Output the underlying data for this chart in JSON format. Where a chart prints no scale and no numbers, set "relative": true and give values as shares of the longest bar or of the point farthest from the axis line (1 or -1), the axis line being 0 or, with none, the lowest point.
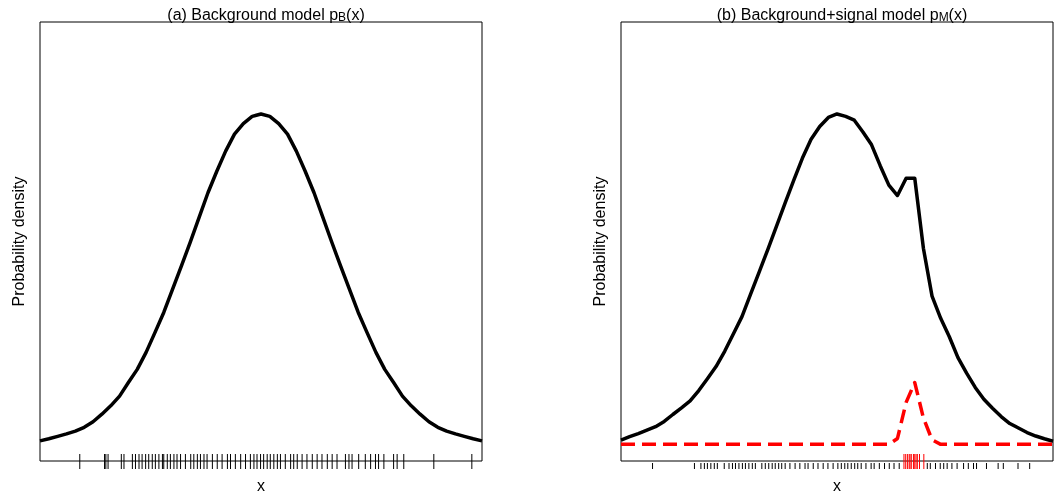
{
  "chart_data": [
    {
      "type": "line",
      "title": "(a) Background model p$_{B}$(x)",
      "xlabel": "x",
      "ylabel": "Probability density",
      "relative": true,
      "tick_labels": false,
      "grid": false,
      "categories": [
        null,
        null,
        null,
        null,
        null,
        null,
        null,
        null,
        null,
        null,
        null,
        null,
        null,
        null,
        null,
        null,
        null,
        null,
        null,
        null,
        null,
        null,
        null,
        null,
        null,
        null,
        null,
        null,
        null,
        null,
        null,
        null,
        null,
        null,
        null,
        null,
        null,
        null,
        null,
        null,
        null,
        null,
        null,
        null,
        null,
        null,
        null,
        null,
        null,
        null,
        null
      ],
      "series": [
        {
          "color": "#000000",
          "line_style": "solid",
          "values": [
            0.058,
            0.064,
            0.071,
            0.078,
            0.086,
            0.097,
            0.113,
            0.135,
            0.159,
            0.187,
            0.226,
            0.264,
            0.313,
            0.37,
            0.428,
            0.495,
            0.562,
            0.631,
            0.702,
            0.773,
            0.835,
            0.893,
            0.942,
            0.972,
            0.993,
            1.0,
            0.993,
            0.972,
            0.942,
            0.893,
            0.835,
            0.773,
            0.702,
            0.631,
            0.562,
            0.495,
            0.428,
            0.37,
            0.313,
            0.264,
            0.226,
            0.187,
            0.159,
            0.135,
            0.113,
            0.097,
            0.086,
            0.078,
            0.071,
            0.064,
            0.058
          ]
        }
      ]
    },
    {
      "type": "line",
      "title": "(b) Background+signal model p$_{M}$(x)",
      "xlabel": "x",
      "ylabel": "Probability density",
      "relative": true,
      "tick_labels": false,
      "grid": false,
      "categories": [
        null,
        null,
        null,
        null,
        null,
        null,
        null,
        null,
        null,
        null,
        null,
        null,
        null,
        null,
        null,
        null,
        null,
        null,
        null,
        null,
        null,
        null,
        null,
        null,
        null,
        null,
        null,
        null,
        null,
        null,
        null,
        null,
        null,
        null,
        null,
        null,
        null,
        null,
        null,
        null,
        null,
        null,
        null,
        null,
        null,
        null,
        null,
        null,
        null,
        null,
        null
      ],
      "series": [
        {
          "color": "#000000",
          "line_style": "solid",
          "values": [
            0.06,
            0.07,
            0.079,
            0.089,
            0.099,
            0.114,
            0.134,
            0.153,
            0.173,
            0.203,
            0.237,
            0.272,
            0.316,
            0.366,
            0.416,
            0.481,
            0.545,
            0.61,
            0.677,
            0.744,
            0.809,
            0.873,
            0.927,
            0.964,
            0.99,
            1.0,
            0.993,
            0.982,
            0.948,
            0.911,
            0.851,
            0.795,
            0.765,
            0.815,
            0.815,
            0.613,
            0.475,
            0.411,
            0.358,
            0.298,
            0.253,
            0.212,
            0.178,
            0.152,
            0.128,
            0.108,
            0.095,
            0.082,
            0.072,
            0.064,
            0.057
          ]
        },
        {
          "color": "#ff0000",
          "line_style": "dashed",
          "values": [
            0.048,
            0.048,
            0.048,
            0.048,
            0.048,
            0.048,
            0.048,
            0.048,
            0.048,
            0.048,
            0.048,
            0.048,
            0.048,
            0.048,
            0.048,
            0.048,
            0.048,
            0.048,
            0.048,
            0.048,
            0.048,
            0.048,
            0.048,
            0.048,
            0.048,
            0.048,
            0.048,
            0.048,
            0.048,
            0.048,
            0.048,
            0.048,
            0.065,
            0.169,
            0.226,
            0.124,
            0.061,
            0.048,
            0.048,
            0.048,
            0.048,
            0.048,
            0.048,
            0.048,
            0.048,
            0.048,
            0.048,
            0.048,
            0.048,
            0.048,
            0.048
          ]
        }
      ]
    }
  ]
}
